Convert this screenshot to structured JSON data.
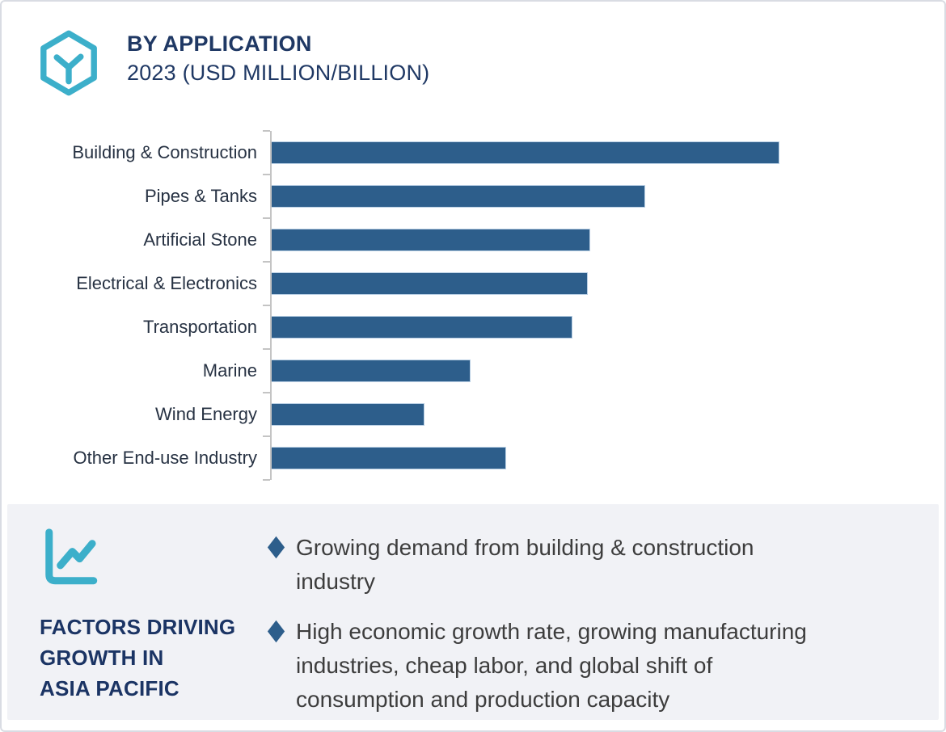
{
  "header": {
    "title": "BY APPLICATION",
    "subtitle": "2023 (USD MILLION/BILLION)",
    "logo_icon": "hexagon-cube-icon"
  },
  "chart_data": {
    "type": "bar",
    "orientation": "horizontal",
    "title": "BY APPLICATION",
    "subtitle": "2023 (USD MILLION/BILLION)",
    "xlabel": "",
    "ylabel": "",
    "categories": [
      "Building & Construction",
      "Pipes & Tanks",
      "Artificial Stone",
      "Electrical & Electronics",
      "Transportation",
      "Marine",
      "Wind Energy",
      "Other End-use Industry"
    ],
    "values": [
      100,
      73.5,
      62.7,
      62.2,
      59.3,
      39.2,
      30.1,
      46.1
    ],
    "value_unit": "percent of longest bar (no numeric axis labels shown in figure)",
    "value_axis_visible": false,
    "grid": false,
    "legend": false,
    "bar_color": "#2d5e8b",
    "bar_border_color": "#b9cfe4",
    "axis_line_color": "#c4c4c4"
  },
  "insights": {
    "icon": "line-chart-icon",
    "heading_lines": [
      "FACTORS DRIVING",
      "GROWTH IN",
      "ASIA PACIFIC"
    ],
    "bullet_marker": "diamond",
    "bullets": [
      {
        "text": "Growing demand from building & construction industry"
      },
      {
        "text": "High economic growth rate, growing manufacturing industries, cheap labor, and global shift of consumption and production capacity"
      }
    ]
  },
  "colors": {
    "accent_teal": "#3cafca",
    "navy": "#1f3864",
    "bar_blue": "#2d5e8b",
    "panel_bg": "#f1f2f6",
    "card_border": "#d9dce3",
    "body_text": "#3d3d3d"
  }
}
